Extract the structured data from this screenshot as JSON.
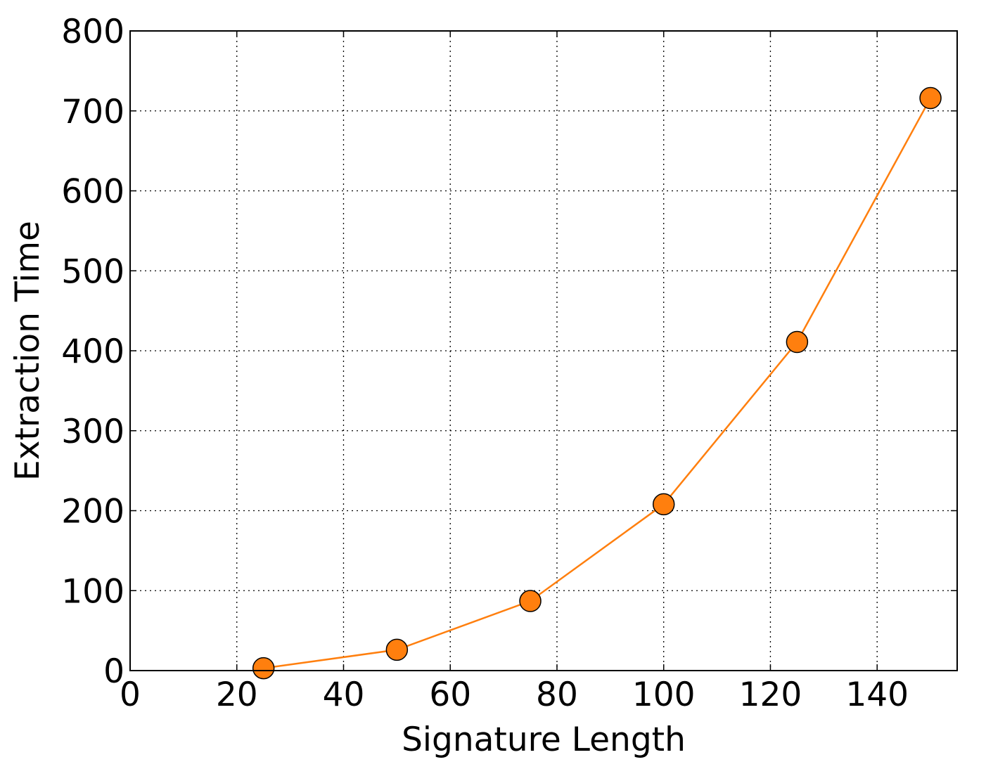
{
  "chart_data": {
    "type": "line",
    "title": "",
    "xlabel": "Signature Length",
    "ylabel": "Extraction Time",
    "xlim": [
      0,
      155
    ],
    "ylim": [
      0,
      800
    ],
    "x_ticks": [
      0,
      20,
      40,
      60,
      80,
      100,
      120,
      140
    ],
    "y_ticks": [
      0,
      100,
      200,
      300,
      400,
      500,
      600,
      700,
      800
    ],
    "grid": true,
    "legend": "none",
    "series": [
      {
        "x": [
          25,
          50,
          75,
          100,
          125,
          150
        ],
        "y": [
          3,
          26,
          87,
          208,
          411,
          716
        ],
        "color": "#ff7f0e",
        "marker": "circle"
      }
    ]
  }
}
